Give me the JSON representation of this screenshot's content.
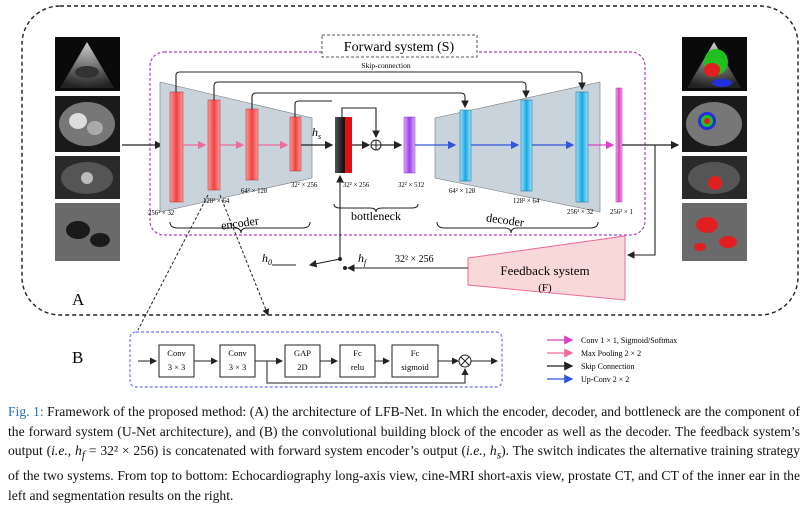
{
  "figure": {
    "panel_a": "A",
    "panel_b": "B",
    "forward_system": "Forward system (S)",
    "skip_connection": "Skip-connection",
    "hs": "h",
    "hs_sub": "s",
    "hf": "h",
    "hf_sub": "f",
    "h0": "h",
    "h0_sub": "0",
    "hf_dim": "32² × 256",
    "encoder_dims": [
      "256² × 32",
      "128² × 64",
      "64² × 128",
      "32² × 256"
    ],
    "bottleneck_dims": [
      "32² × 256",
      "32² × 512"
    ],
    "decoder_dims": [
      "64² × 128",
      "128² × 64",
      "256² × 32",
      "256² × 1"
    ],
    "encoder_label": "encoder",
    "bottleneck_label": "bottleneck",
    "decoder_label": "decoder",
    "feedback_system": "Feedback system",
    "feedback_f": "(F)",
    "block_b": [
      {
        "line1": "Conv",
        "line2": "3 × 3"
      },
      {
        "line1": "Conv",
        "line2": "3 × 3"
      },
      {
        "line1": "GAP",
        "line2": "2D"
      },
      {
        "line1": "Fc",
        "line2": "relu"
      },
      {
        "line1": "Fc",
        "line2": "sigmoid"
      }
    ],
    "legend": [
      {
        "label": "Conv  1 × 1, Sigmoid/Softmax",
        "color": "#e040c0"
      },
      {
        "label": "Max Pooling  2 × 2",
        "color": "#f06a9a"
      },
      {
        "label": "Skip Connection",
        "color": "#222222"
      },
      {
        "label": "Up-Conv  2 × 2",
        "color": "#3355dd"
      }
    ]
  },
  "caption": {
    "fig_label": "Fig. 1:",
    "part1": " Framework of the proposed method: (A) the architecture of LFB-Net. In which the encoder, decoder, and bottleneck are the component of the forward system (U-Net architecture), and (B) the convolutional building block of the encoder as well as the decoder. The feedback system’s output (",
    "ie1": "i.e., h",
    "ie1_sub": "f",
    "part2": " = 32² × 256) is concatenated with forward system encoder’s output (",
    "ie2": "i.e., h",
    "ie2_sub": "s",
    "part3": "). The switch indicates the alternative training strategy of the two systems. From top to bottom: Echocardiography long-axis view, cine-MRI short-axis view, prostate CT, and CT of the inner ear in the left and segmentation results on the right."
  }
}
